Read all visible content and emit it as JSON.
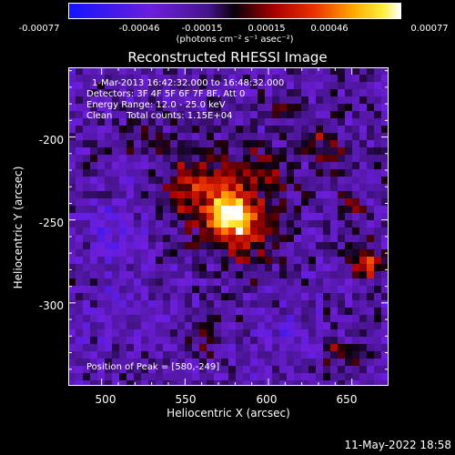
{
  "colorbar": {
    "ticks": [
      "-0.00077",
      "-0.00046",
      "-0.00015",
      "0.00015",
      "0.00046",
      "0.00077"
    ],
    "unit": "(photons cm⁻² s⁻¹ asec⁻²)",
    "range": [
      -0.00077,
      0.00077
    ]
  },
  "chart_data": {
    "type": "heatmap",
    "title": "Reconstructed RHESSI Image",
    "xlabel": "Heliocentric X (arcsec)",
    "ylabel": "Heliocentric Y (arcsec)",
    "xlim": [
      480,
      672
    ],
    "ylim": [
      -350,
      -158
    ],
    "x_ticks": [
      500,
      550,
      600,
      650
    ],
    "y_ticks": [
      -200,
      -250,
      -300
    ],
    "peak": [
      580,
      -249
    ],
    "sources": [
      {
        "x": 578,
        "y": -249,
        "amp": 1.0,
        "sigma": 9
      },
      {
        "x": 563,
        "y": -232,
        "amp": 0.6,
        "sigma": 17
      },
      {
        "x": 590,
        "y": -262,
        "amp": 0.35,
        "sigma": 14
      },
      {
        "x": 598,
        "y": -222,
        "amp": 0.35,
        "sigma": 12
      },
      {
        "x": 660,
        "y": -276,
        "amp": 0.65,
        "sigma": 7
      },
      {
        "x": 650,
        "y": -242,
        "amp": 0.4,
        "sigma": 5
      },
      {
        "x": 640,
        "y": -215,
        "amp": 0.3,
        "sigma": 7
      },
      {
        "x": 630,
        "y": -200,
        "amp": 0.3,
        "sigma": 6
      },
      {
        "x": 612,
        "y": -185,
        "amp": 0.3,
        "sigma": 6
      },
      {
        "x": 640,
        "y": -330,
        "amp": 0.4,
        "sigma": 7
      },
      {
        "x": 560,
        "y": -320,
        "amp": 0.2,
        "sigma": 8
      },
      {
        "x": 525,
        "y": -200,
        "amp": 0.25,
        "sigma": 8
      },
      {
        "x": 505,
        "y": -255,
        "amp": -0.2,
        "sigma": 14
      },
      {
        "x": 510,
        "y": -310,
        "amp": -0.15,
        "sigma": 16
      },
      {
        "x": 610,
        "y": -320,
        "amp": -0.15,
        "sigma": 14
      }
    ]
  },
  "info": {
    "line1": "1-Mar-2013 16:42:32.000 to 16:48:32.000",
    "line2": "Detectors: 3F 4F 5F 6F 7F 8F, Att 0",
    "line3": "Energy Range: 12.0 - 25.0 keV",
    "line4": "Clean     Total counts: 1.15E+04",
    "peak": "Position of Peak = [580,-249]"
  },
  "timestamp": "11-May-2022 18:58"
}
